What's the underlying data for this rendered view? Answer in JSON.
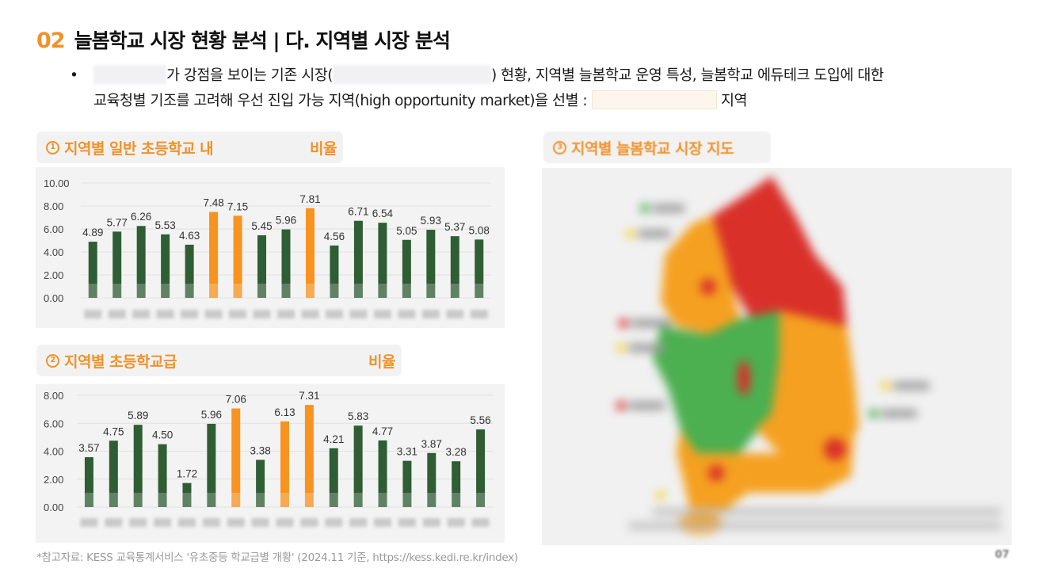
{
  "header": {
    "section_number": "02",
    "title": "늘봄학교 시장 현황 분석 | 다. 지역별 시장 분석"
  },
  "bullet": {
    "line1_part1": "가 강점을 보이는 기존 시장(",
    "line1_part2": ") 현황, 지역별 늘봄학교 운영 특성, 늘봄학교 에듀테크 도입에 대한",
    "line2_part1": "교육청별 기조를 고려해 우선 진입 가능 지역(high opportunity market)을 선별 :",
    "line2_part2": "지역"
  },
  "panels": {
    "chart1_title": "지역별 일반 초등학교 내",
    "chart1_title_tail": "비율",
    "chart1_number": "1",
    "chart2_title": "지역별 초등학교급",
    "chart2_title_tail": "비율",
    "chart2_number": "2",
    "map_title": "지역별 늘봄학교 시장 지도",
    "map_number": "3"
  },
  "colors": {
    "accent_orange": "#f7931e",
    "bar_green": "#2f5d34",
    "map_red": "#d9302a",
    "map_orange": "#f5a020",
    "map_green": "#4caf50"
  },
  "chart_data": [
    {
      "type": "bar",
      "title": "① 지역별 일반 초등학교 내 비율",
      "xlabel": "",
      "ylabel": "",
      "ylim": [
        0,
        10
      ],
      "yticks": [
        "0.00",
        "2.00",
        "4.00",
        "6.00",
        "8.00",
        "10.00"
      ],
      "grid": true,
      "categories": [
        "서울",
        "region2",
        "region3",
        "region4",
        "region5",
        "region6",
        "region7",
        "region8",
        "region9",
        "region10",
        "region11",
        "region12",
        "region13",
        "region14",
        "region15",
        "region16",
        "제주"
      ],
      "values": [
        4.89,
        5.77,
        6.26,
        5.53,
        4.63,
        7.48,
        7.15,
        5.45,
        5.96,
        7.81,
        4.56,
        6.71,
        6.54,
        5.05,
        5.93,
        5.37,
        5.08
      ],
      "highlighted_indices": [
        5,
        6,
        9
      ]
    },
    {
      "type": "bar",
      "title": "② 지역별 초등학교급 비율",
      "xlabel": "",
      "ylabel": "",
      "ylim": [
        0,
        8
      ],
      "yticks": [
        "0.00",
        "2.00",
        "4.00",
        "6.00",
        "8.00"
      ],
      "grid": true,
      "categories": [
        "서울",
        "region2",
        "region3",
        "region4",
        "region5",
        "region6",
        "region7",
        "region8",
        "region9",
        "region10",
        "region11",
        "region12",
        "region13",
        "region14",
        "region15",
        "region16",
        "region17"
      ],
      "values": [
        3.57,
        4.75,
        5.89,
        4.5,
        1.72,
        5.96,
        7.06,
        3.38,
        6.13,
        7.31,
        4.21,
        5.83,
        4.77,
        3.31,
        3.87,
        3.28,
        5.56
      ],
      "highlighted_indices": [
        6,
        8,
        9
      ]
    }
  ],
  "footer": {
    "source": "*참고자료: KESS 교육통계서비스 '유초중등 학교급별 개황' (2024.11 기준, https://kess.kedi.re.kr/index)",
    "page": "07"
  }
}
